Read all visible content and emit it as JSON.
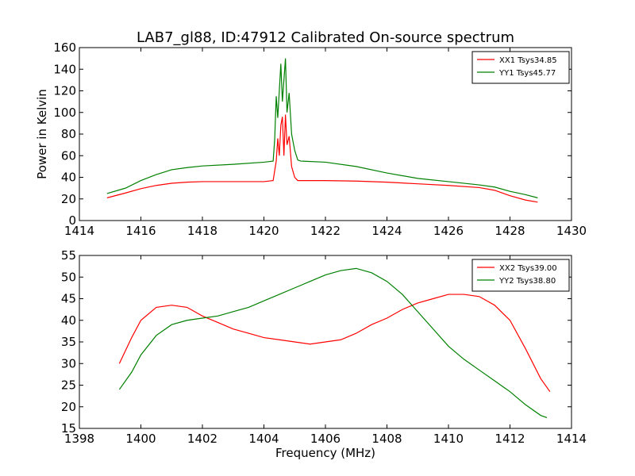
{
  "figure_title": "LAB7_gl88, ID:47912 Calibrated On-source spectrum",
  "chart_data": [
    {
      "type": "line",
      "title": "LAB7_gl88, ID:47912 Calibrated On-source spectrum",
      "xlabel": "",
      "ylabel": "Power in Kelvin",
      "xlim": [
        1414,
        1430
      ],
      "ylim": [
        0,
        160
      ],
      "xticks": [
        1414,
        1416,
        1418,
        1420,
        1422,
        1424,
        1426,
        1428,
        1430
      ],
      "yticks": [
        0,
        20,
        40,
        60,
        80,
        100,
        120,
        140,
        160
      ],
      "grid": false,
      "legend_position": "top-right",
      "series": [
        {
          "name": "XX1 Tsys34.85",
          "color": "#ff0000",
          "points": [
            [
              1414.9,
              21
            ],
            [
              1415.5,
              25.5
            ],
            [
              1416,
              29.5
            ],
            [
              1416.5,
              32.5
            ],
            [
              1417,
              34.5
            ],
            [
              1417.5,
              35.5
            ],
            [
              1418,
              36
            ],
            [
              1419,
              36
            ],
            [
              1420,
              36
            ],
            [
              1420.3,
              37
            ],
            [
              1420.4,
              55
            ],
            [
              1420.45,
              76
            ],
            [
              1420.5,
              60
            ],
            [
              1420.55,
              88
            ],
            [
              1420.6,
              96
            ],
            [
              1420.65,
              60
            ],
            [
              1420.7,
              98
            ],
            [
              1420.75,
              70
            ],
            [
              1420.82,
              78
            ],
            [
              1420.9,
              50
            ],
            [
              1421,
              40
            ],
            [
              1421.1,
              37
            ],
            [
              1422,
              37
            ],
            [
              1423,
              36.5
            ],
            [
              1424,
              35.5
            ],
            [
              1425,
              34
            ],
            [
              1426,
              32.5
            ],
            [
              1427,
              30.5
            ],
            [
              1427.5,
              28
            ],
            [
              1428,
              23
            ],
            [
              1428.5,
              19
            ],
            [
              1428.9,
              17
            ]
          ]
        },
        {
          "name": "YY1 Tsys45.77",
          "color": "#008000",
          "points": [
            [
              1414.9,
              25
            ],
            [
              1415.5,
              30
            ],
            [
              1416,
              37
            ],
            [
              1416.5,
              42.5
            ],
            [
              1417,
              47
            ],
            [
              1417.5,
              49
            ],
            [
              1418,
              50.5
            ],
            [
              1419,
              52
            ],
            [
              1420,
              54
            ],
            [
              1420.3,
              55
            ],
            [
              1420.35,
              75
            ],
            [
              1420.4,
              115
            ],
            [
              1420.45,
              95
            ],
            [
              1420.5,
              120
            ],
            [
              1420.55,
              145
            ],
            [
              1420.6,
              110
            ],
            [
              1420.7,
              150
            ],
            [
              1420.75,
              100
            ],
            [
              1420.82,
              118
            ],
            [
              1420.9,
              80
            ],
            [
              1421,
              65
            ],
            [
              1421.1,
              56
            ],
            [
              1421.2,
              55
            ],
            [
              1422,
              54
            ],
            [
              1423,
              50
            ],
            [
              1424,
              44
            ],
            [
              1425,
              39
            ],
            [
              1426,
              36
            ],
            [
              1427,
              33
            ],
            [
              1427.5,
              31
            ],
            [
              1428,
              27
            ],
            [
              1428.5,
              24
            ],
            [
              1428.9,
              21
            ]
          ]
        }
      ]
    },
    {
      "type": "line",
      "title": "",
      "xlabel": "Frequency (MHz)",
      "ylabel": "",
      "xlim": [
        1398,
        1414
      ],
      "ylim": [
        15,
        55
      ],
      "xticks": [
        1398,
        1400,
        1402,
        1404,
        1406,
        1408,
        1410,
        1412,
        1414
      ],
      "yticks": [
        15,
        20,
        25,
        30,
        35,
        40,
        45,
        50,
        55
      ],
      "grid": false,
      "legend_position": "top-right",
      "series": [
        {
          "name": "XX2 Tsys39.00",
          "color": "#ff0000",
          "points": [
            [
              1399.3,
              30
            ],
            [
              1399.7,
              36
            ],
            [
              1400,
              40
            ],
            [
              1400.5,
              43
            ],
            [
              1401,
              43.5
            ],
            [
              1401.5,
              43
            ],
            [
              1402,
              41
            ],
            [
              1402.5,
              39.5
            ],
            [
              1403,
              38
            ],
            [
              1403.5,
              37
            ],
            [
              1404,
              36
            ],
            [
              1404.5,
              35.5
            ],
            [
              1405,
              35
            ],
            [
              1405.5,
              34.5
            ],
            [
              1406,
              35
            ],
            [
              1406.5,
              35.5
            ],
            [
              1407,
              37
            ],
            [
              1407.5,
              39
            ],
            [
              1408,
              40.5
            ],
            [
              1408.5,
              42.5
            ],
            [
              1409,
              44
            ],
            [
              1409.5,
              45
            ],
            [
              1410,
              46
            ],
            [
              1410.5,
              46
            ],
            [
              1411,
              45.5
            ],
            [
              1411.5,
              43.5
            ],
            [
              1412,
              40
            ],
            [
              1412.5,
              33.5
            ],
            [
              1413,
              26.5
            ],
            [
              1413.3,
              23.5
            ]
          ]
        },
        {
          "name": "YY2 Tsys38.80",
          "color": "#008000",
          "points": [
            [
              1399.3,
              24
            ],
            [
              1399.7,
              28
            ],
            [
              1400,
              32
            ],
            [
              1400.5,
              36.5
            ],
            [
              1401,
              39
            ],
            [
              1401.5,
              40
            ],
            [
              1402,
              40.5
            ],
            [
              1402.5,
              41
            ],
            [
              1403,
              42
            ],
            [
              1403.5,
              43
            ],
            [
              1404,
              44.5
            ],
            [
              1404.5,
              46
            ],
            [
              1405,
              47.5
            ],
            [
              1405.5,
              49
            ],
            [
              1406,
              50.5
            ],
            [
              1406.5,
              51.5
            ],
            [
              1407,
              52
            ],
            [
              1407.5,
              51
            ],
            [
              1408,
              49
            ],
            [
              1408.5,
              46
            ],
            [
              1409,
              42
            ],
            [
              1409.5,
              38
            ],
            [
              1410,
              34
            ],
            [
              1410.5,
              31
            ],
            [
              1411,
              28.5
            ],
            [
              1411.5,
              26
            ],
            [
              1412,
              23.5
            ],
            [
              1412.5,
              20.5
            ],
            [
              1413,
              18
            ],
            [
              1413.2,
              17.5
            ]
          ]
        }
      ]
    }
  ]
}
